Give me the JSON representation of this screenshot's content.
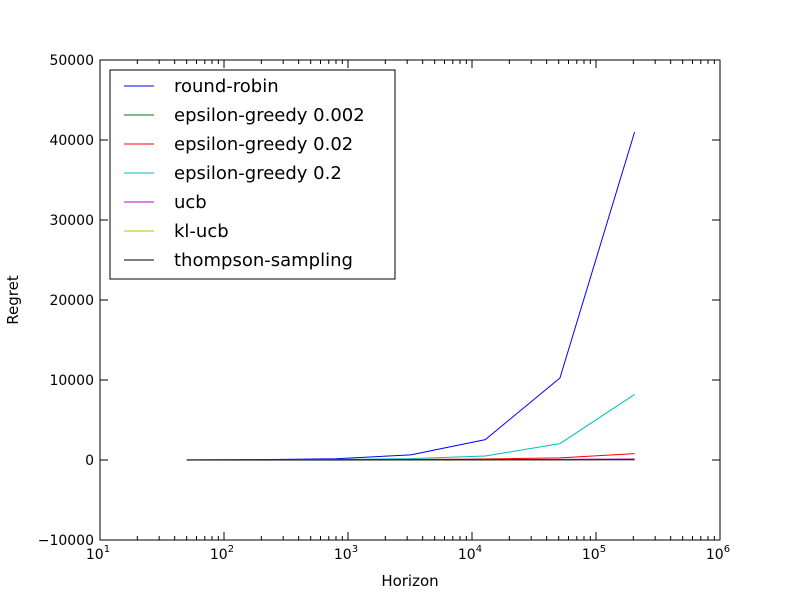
{
  "chart_data": {
    "type": "line",
    "xlabel": "Horizon",
    "ylabel": "Regret",
    "xscale": "log",
    "xlim": [
      10,
      1000000
    ],
    "ylim": [
      -10000,
      50000
    ],
    "x_ticks": [
      {
        "base": "10",
        "exp": "1"
      },
      {
        "base": "10",
        "exp": "2"
      },
      {
        "base": "10",
        "exp": "3"
      },
      {
        "base": "10",
        "exp": "4"
      },
      {
        "base": "10",
        "exp": "5"
      },
      {
        "base": "10",
        "exp": "6"
      }
    ],
    "y_ticks": [
      "−10000",
      "0",
      "10000",
      "20000",
      "30000",
      "40000",
      "50000"
    ],
    "legend_position": "top-left",
    "x": [
      50,
      200,
      800,
      3200,
      12800,
      51200,
      204800
    ],
    "series": [
      {
        "name": "round-robin",
        "color": "#0000ff",
        "values": [
          10,
          40,
          160,
          640,
          2550,
          10250,
          41000
        ]
      },
      {
        "name": "epsilon-greedy 0.002",
        "color": "#008000",
        "values": [
          3,
          8,
          15,
          25,
          40,
          60,
          90
        ]
      },
      {
        "name": "epsilon-greedy 0.02",
        "color": "#ff0000",
        "values": [
          5,
          15,
          35,
          70,
          130,
          260,
          800
        ]
      },
      {
        "name": "epsilon-greedy 0.2",
        "color": "#00bfbf",
        "values": [
          6,
          25,
          60,
          170,
          500,
          2050,
          8200
        ]
      },
      {
        "name": "ucb",
        "color": "#bf00bf",
        "values": [
          4,
          10,
          20,
          35,
          55,
          85,
          130
        ]
      },
      {
        "name": "kl-ucb",
        "color": "#bfbf00",
        "values": [
          3,
          7,
          12,
          20,
          30,
          45,
          65
        ]
      },
      {
        "name": "thompson-sampling",
        "color": "#000000",
        "values": [
          2,
          5,
          8,
          12,
          16,
          20,
          25
        ]
      }
    ]
  }
}
